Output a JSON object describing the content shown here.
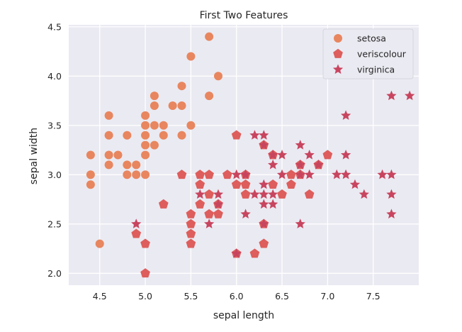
{
  "chart_data": {
    "type": "scatter",
    "title": "First Two Features",
    "xlabel": "sepal length",
    "ylabel": "sepal width",
    "xlim": [
      4.16,
      8.0
    ],
    "ylim": [
      1.88,
      4.52
    ],
    "xticks": [
      4.5,
      5.0,
      5.5,
      6.0,
      6.5,
      7.0,
      7.5
    ],
    "xtick_labels": [
      "4.5",
      "5.0",
      "5.5",
      "6.0",
      "6.5",
      "7.0",
      "7.5"
    ],
    "yticks": [
      2.0,
      2.5,
      3.0,
      3.5,
      4.0,
      4.5
    ],
    "ytick_labels": [
      "2.0",
      "2.5",
      "3.0",
      "3.5",
      "4.0",
      "4.5"
    ],
    "grid": true,
    "background": "#eaeaf2",
    "legend_position": "top-right",
    "series": [
      {
        "name": "setosa",
        "marker": "circle",
        "color": "#e8865f",
        "points": [
          [
            4.4,
            3.2
          ],
          [
            4.4,
            3.0
          ],
          [
            4.4,
            2.9
          ],
          [
            4.5,
            2.3
          ],
          [
            4.6,
            3.6
          ],
          [
            4.6,
            3.4
          ],
          [
            4.6,
            3.2
          ],
          [
            4.6,
            3.1
          ],
          [
            4.7,
            3.2
          ],
          [
            4.8,
            3.4
          ],
          [
            4.8,
            3.1
          ],
          [
            4.8,
            3.0
          ],
          [
            4.9,
            3.1
          ],
          [
            4.9,
            3.0
          ],
          [
            5.0,
            3.6
          ],
          [
            5.0,
            3.5
          ],
          [
            5.0,
            3.4
          ],
          [
            5.0,
            3.3
          ],
          [
            5.0,
            3.2
          ],
          [
            5.0,
            3.0
          ],
          [
            5.1,
            3.8
          ],
          [
            5.1,
            3.7
          ],
          [
            5.1,
            3.5
          ],
          [
            5.1,
            3.3
          ],
          [
            5.2,
            3.5
          ],
          [
            5.2,
            3.4
          ],
          [
            5.3,
            3.7
          ],
          [
            5.4,
            3.9
          ],
          [
            5.4,
            3.7
          ],
          [
            5.4,
            3.4
          ],
          [
            5.5,
            4.2
          ],
          [
            5.5,
            3.5
          ],
          [
            5.7,
            4.4
          ],
          [
            5.7,
            3.8
          ],
          [
            5.8,
            4.0
          ]
        ]
      },
      {
        "name": "veriscolour",
        "marker": "pentagon",
        "color": "#dd5e5c",
        "points": [
          [
            4.9,
            2.4
          ],
          [
            5.0,
            2.3
          ],
          [
            5.0,
            2.0
          ],
          [
            5.2,
            2.7
          ],
          [
            5.4,
            3.0
          ],
          [
            5.5,
            2.6
          ],
          [
            5.5,
            2.5
          ],
          [
            5.5,
            2.4
          ],
          [
            5.5,
            2.3
          ],
          [
            5.6,
            3.0
          ],
          [
            5.6,
            2.9
          ],
          [
            5.6,
            2.7
          ],
          [
            5.7,
            3.0
          ],
          [
            5.7,
            2.8
          ],
          [
            5.7,
            2.6
          ],
          [
            5.8,
            2.7
          ],
          [
            5.8,
            2.6
          ],
          [
            5.9,
            3.0
          ],
          [
            6.0,
            3.4
          ],
          [
            6.0,
            2.9
          ],
          [
            6.0,
            2.2
          ],
          [
            6.1,
            3.0
          ],
          [
            6.1,
            2.9
          ],
          [
            6.1,
            2.8
          ],
          [
            6.2,
            2.2
          ],
          [
            6.3,
            3.3
          ],
          [
            6.3,
            2.5
          ],
          [
            6.3,
            2.3
          ],
          [
            6.4,
            3.2
          ],
          [
            6.4,
            2.9
          ],
          [
            6.5,
            2.8
          ],
          [
            6.6,
            3.0
          ],
          [
            6.6,
            2.9
          ],
          [
            6.7,
            3.1
          ],
          [
            6.7,
            3.0
          ],
          [
            6.8,
            2.8
          ],
          [
            6.9,
            3.1
          ],
          [
            7.0,
            3.2
          ]
        ]
      },
      {
        "name": "virginica",
        "marker": "star",
        "color": "#c8455f",
        "points": [
          [
            4.9,
            2.5
          ],
          [
            5.6,
            2.8
          ],
          [
            5.7,
            2.5
          ],
          [
            5.8,
            2.8
          ],
          [
            5.8,
            2.7
          ],
          [
            6.0,
            3.0
          ],
          [
            6.0,
            2.2
          ],
          [
            6.1,
            3.0
          ],
          [
            6.1,
            2.6
          ],
          [
            6.2,
            3.4
          ],
          [
            6.2,
            2.8
          ],
          [
            6.3,
            3.4
          ],
          [
            6.3,
            3.3
          ],
          [
            6.3,
            2.9
          ],
          [
            6.3,
            2.8
          ],
          [
            6.3,
            2.7
          ],
          [
            6.3,
            2.5
          ],
          [
            6.4,
            3.2
          ],
          [
            6.4,
            3.1
          ],
          [
            6.4,
            2.8
          ],
          [
            6.4,
            2.7
          ],
          [
            6.5,
            3.2
          ],
          [
            6.5,
            3.0
          ],
          [
            6.7,
            3.3
          ],
          [
            6.7,
            3.1
          ],
          [
            6.7,
            3.0
          ],
          [
            6.7,
            2.5
          ],
          [
            6.8,
            3.2
          ],
          [
            6.8,
            3.0
          ],
          [
            6.9,
            3.1
          ],
          [
            7.1,
            3.0
          ],
          [
            7.2,
            3.6
          ],
          [
            7.2,
            3.2
          ],
          [
            7.2,
            3.0
          ],
          [
            7.3,
            2.9
          ],
          [
            7.4,
            2.8
          ],
          [
            7.6,
            3.0
          ],
          [
            7.7,
            3.8
          ],
          [
            7.7,
            3.0
          ],
          [
            7.7,
            2.8
          ],
          [
            7.7,
            2.6
          ],
          [
            7.9,
            3.8
          ]
        ]
      }
    ]
  }
}
